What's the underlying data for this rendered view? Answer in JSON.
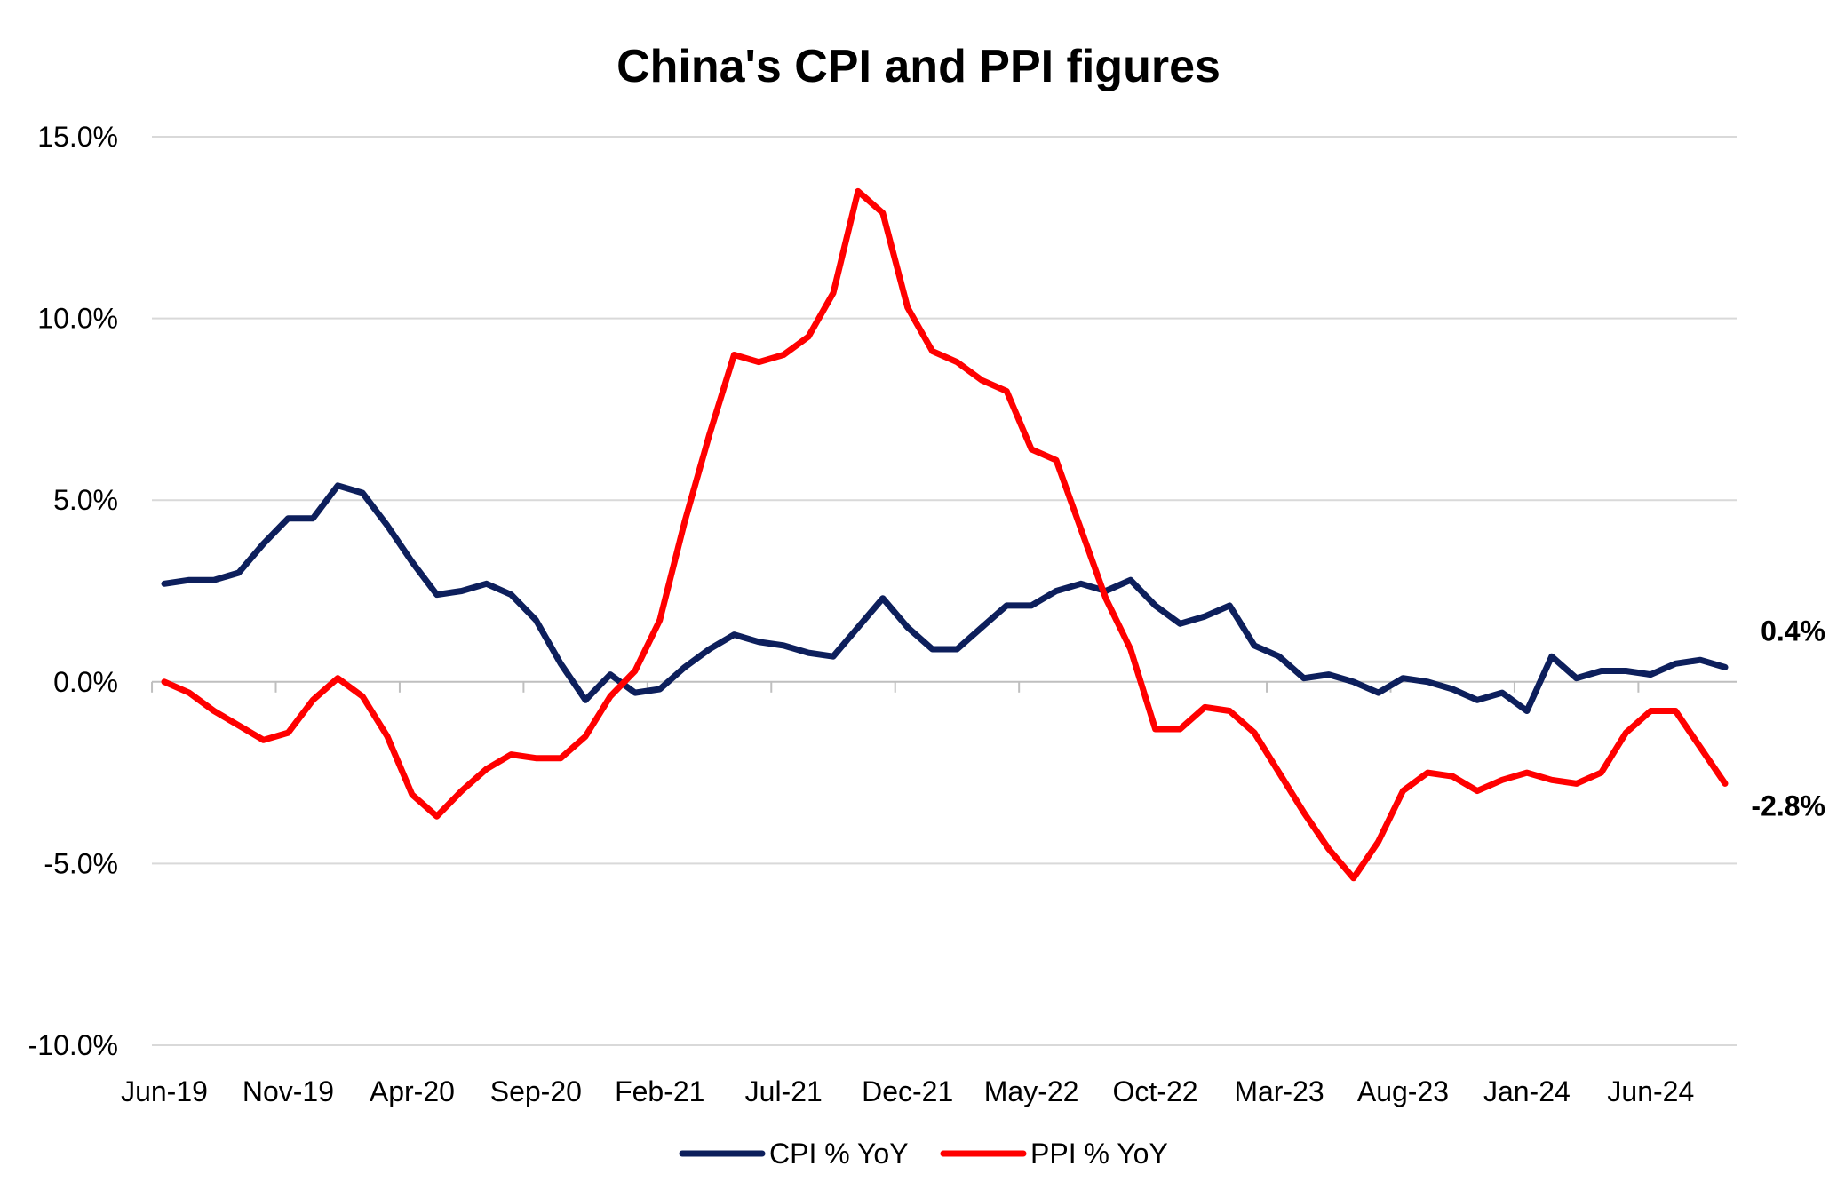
{
  "chart_data": {
    "type": "line",
    "title": "China's CPI and PPI figures",
    "xlabel": "",
    "ylabel": "",
    "ylim": [
      -10,
      15
    ],
    "yticks": [
      "15.0%",
      "10.0%",
      "5.0%",
      "0.0%",
      "-5.0%",
      "-10.0%"
    ],
    "ytick_values": [
      15,
      10,
      5,
      0,
      -5,
      -10
    ],
    "grid": "horizontal",
    "legend": "bottom",
    "x": [
      "Jun-19",
      "Jul-19",
      "Aug-19",
      "Sep-19",
      "Oct-19",
      "Nov-19",
      "Dec-19",
      "Jan-20",
      "Feb-20",
      "Mar-20",
      "Apr-20",
      "May-20",
      "Jun-20",
      "Jul-20",
      "Aug-20",
      "Sep-20",
      "Oct-20",
      "Nov-20",
      "Dec-20",
      "Jan-21",
      "Feb-21",
      "Mar-21",
      "Apr-21",
      "May-21",
      "Jun-21",
      "Jul-21",
      "Aug-21",
      "Sep-21",
      "Oct-21",
      "Nov-21",
      "Dec-21",
      "Jan-22",
      "Feb-22",
      "Mar-22",
      "Apr-22",
      "May-22",
      "Jun-22",
      "Jul-22",
      "Aug-22",
      "Sep-22",
      "Oct-22",
      "Nov-22",
      "Dec-22",
      "Jan-23",
      "Feb-23",
      "Mar-23",
      "Apr-23",
      "May-23",
      "Jun-23",
      "Jul-23",
      "Aug-23",
      "Sep-23",
      "Oct-23",
      "Nov-23",
      "Dec-23",
      "Jan-24",
      "Feb-24",
      "Mar-24",
      "Apr-24",
      "May-24",
      "Jun-24",
      "Jul-24",
      "Aug-24",
      "Sep-24"
    ],
    "xtick_labels": [
      "Jun-19",
      "Nov-19",
      "Apr-20",
      "Sep-20",
      "Feb-21",
      "Jul-21",
      "Dec-21",
      "May-22",
      "Oct-22",
      "Mar-23",
      "Aug-23",
      "Jan-24",
      "Jun-24"
    ],
    "series": [
      {
        "name": "CPI % YoY",
        "color": "#0d1f5c",
        "end_label": "0.4%",
        "values": [
          2.7,
          2.8,
          2.8,
          3.0,
          3.8,
          4.5,
          4.5,
          5.4,
          5.2,
          4.3,
          3.3,
          2.4,
          2.5,
          2.7,
          2.4,
          1.7,
          0.5,
          -0.5,
          0.2,
          -0.3,
          -0.2,
          0.4,
          0.9,
          1.3,
          1.1,
          1.0,
          0.8,
          0.7,
          1.5,
          2.3,
          1.5,
          0.9,
          0.9,
          1.5,
          2.1,
          2.1,
          2.5,
          2.7,
          2.5,
          2.8,
          2.1,
          1.6,
          1.8,
          2.1,
          1.0,
          0.7,
          0.1,
          0.2,
          0.0,
          -0.3,
          0.1,
          0.0,
          -0.2,
          -0.5,
          -0.3,
          -0.8,
          0.7,
          0.1,
          0.3,
          0.3,
          0.2,
          0.5,
          0.6,
          0.4
        ]
      },
      {
        "name": "PPI % YoY",
        "color": "#ff0000",
        "end_label": "-2.8%",
        "values": [
          0.0,
          -0.3,
          -0.8,
          -1.2,
          -1.6,
          -1.4,
          -0.5,
          0.1,
          -0.4,
          -1.5,
          -3.1,
          -3.7,
          -3.0,
          -2.4,
          -2.0,
          -2.1,
          -2.1,
          -1.5,
          -0.4,
          0.3,
          1.7,
          4.4,
          6.8,
          9.0,
          8.8,
          9.0,
          9.5,
          10.7,
          13.5,
          12.9,
          10.3,
          9.1,
          8.8,
          8.3,
          8.0,
          6.4,
          6.1,
          4.2,
          2.3,
          0.9,
          -1.3,
          -1.3,
          -0.7,
          -0.8,
          -1.4,
          -2.5,
          -3.6,
          -4.6,
          -5.4,
          -4.4,
          -3.0,
          -2.5,
          -2.6,
          -3.0,
          -2.7,
          -2.5,
          -2.7,
          -2.8,
          -2.5,
          -1.4,
          -0.8,
          -0.8,
          -1.8,
          -2.8
        ]
      }
    ]
  }
}
